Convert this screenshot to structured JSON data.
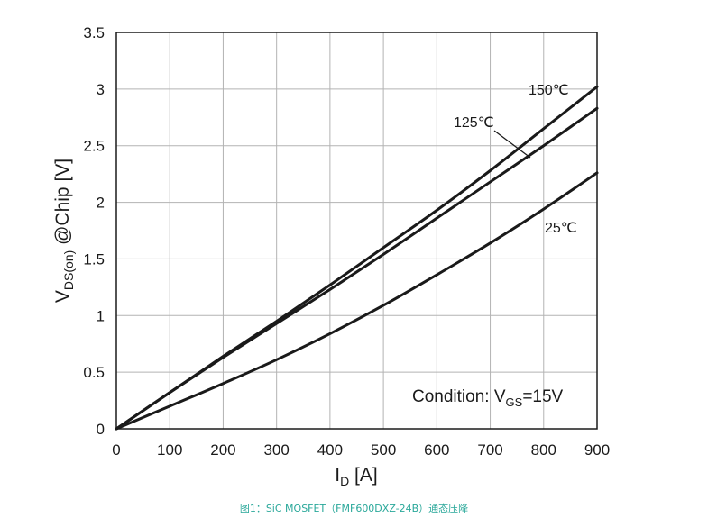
{
  "chart_data": {
    "type": "line",
    "title": "",
    "xlabel": "I_D [A]",
    "xlabel_main": "I",
    "xlabel_sub": "D",
    "xlabel_unit": " [A]",
    "ylabel": "V_DS(on) @Chip [V]",
    "ylabel_main": "V",
    "ylabel_sub": "DS(on)",
    "ylabel_unit": " @Chip [V]",
    "xlim": [
      0,
      900
    ],
    "ylim": [
      0,
      3.5
    ],
    "x_ticks": [
      "0",
      "100",
      "200",
      "300",
      "400",
      "500",
      "600",
      "700",
      "800",
      "900"
    ],
    "y_ticks": [
      "0",
      "0.5",
      "1",
      "1.5",
      "2",
      "2.5",
      "3",
      "3.5"
    ],
    "grid": true,
    "annotation": {
      "prefix": "Condition: V",
      "sub": "GS",
      "suffix": "=15V"
    },
    "x": [
      0,
      100,
      200,
      300,
      400,
      500,
      600,
      700,
      800,
      900
    ],
    "series": [
      {
        "name": "150℃",
        "values": [
          0,
          0.32,
          0.64,
          0.95,
          1.27,
          1.6,
          1.93,
          2.28,
          2.65,
          3.02
        ]
      },
      {
        "name": "125℃",
        "values": [
          0,
          0.32,
          0.63,
          0.93,
          1.23,
          1.54,
          1.86,
          2.18,
          2.5,
          2.83
        ]
      },
      {
        "name": "25℃",
        "values": [
          0,
          0.2,
          0.4,
          0.61,
          0.84,
          1.09,
          1.36,
          1.64,
          1.94,
          2.26
        ]
      }
    ]
  },
  "caption": "图1：SiC MOSFET（FMF600DXZ-24B）通态压降",
  "colors": {
    "line": "#1a1a1a",
    "grid": "#b3b3b3",
    "caption": "#2aa89a"
  }
}
